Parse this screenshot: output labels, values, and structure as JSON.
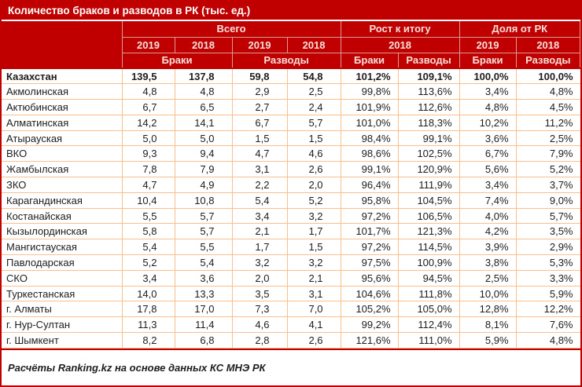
{
  "colors": {
    "header_bg": "#C00000",
    "header_text": "#F5E0DA",
    "title_text": "#FFFFFF",
    "grid_line": "#FABF8F",
    "divider": "#C00000",
    "body_text": "#1D1D1D"
  },
  "chart_data": {
    "type": "table",
    "title": "Количество браков и разводов в РК (тыс. ед.)",
    "column_groups": [
      "Всего",
      "Рост к итогу",
      "Доля от РК"
    ],
    "year_headers": [
      "2019",
      "2018",
      "2019",
      "2018",
      "2018",
      "2019",
      "2018"
    ],
    "measure_headers": [
      "Браки",
      "Разводы",
      "Браки",
      "Разводы",
      "Браки",
      "Разводы"
    ],
    "columns_semantics": [
      "Браки 2019, тыс.",
      "Браки 2018, тыс.",
      "Разводы 2019, тыс.",
      "Разводы 2018, тыс.",
      "Рост к итогу 2018, Браки %",
      "Рост к итогу 2018, Разводы %",
      "Доля от РК 2019, Браки %",
      "Доля от РК 2018, Разводы %"
    ],
    "rows": [
      {
        "region": "Казахстан",
        "bold": true,
        "values": [
          "139,5",
          "137,8",
          "59,8",
          "54,8",
          "101,2%",
          "109,1%",
          "100,0%",
          "100,0%"
        ]
      },
      {
        "region": "Акмолинская",
        "bold": false,
        "values": [
          "4,8",
          "4,8",
          "2,9",
          "2,5",
          "99,8%",
          "113,6%",
          "3,4%",
          "4,8%"
        ]
      },
      {
        "region": "Актюбинская",
        "bold": false,
        "values": [
          "6,7",
          "6,5",
          "2,7",
          "2,4",
          "101,9%",
          "112,6%",
          "4,8%",
          "4,5%"
        ]
      },
      {
        "region": "Алматинская",
        "bold": false,
        "values": [
          "14,2",
          "14,1",
          "6,7",
          "5,7",
          "101,0%",
          "118,3%",
          "10,2%",
          "11,2%"
        ]
      },
      {
        "region": "Атырауская",
        "bold": false,
        "values": [
          "5,0",
          "5,0",
          "1,5",
          "1,5",
          "98,4%",
          "99,1%",
          "3,6%",
          "2,5%"
        ]
      },
      {
        "region": "ВКО",
        "bold": false,
        "values": [
          "9,3",
          "9,4",
          "4,7",
          "4,6",
          "98,6%",
          "102,5%",
          "6,7%",
          "7,9%"
        ]
      },
      {
        "region": "Жамбылская",
        "bold": false,
        "values": [
          "7,8",
          "7,9",
          "3,1",
          "2,6",
          "99,1%",
          "120,9%",
          "5,6%",
          "5,2%"
        ]
      },
      {
        "region": "ЗКО",
        "bold": false,
        "values": [
          "4,7",
          "4,9",
          "2,2",
          "2,0",
          "96,4%",
          "111,9%",
          "3,4%",
          "3,7%"
        ]
      },
      {
        "region": "Карагандинская",
        "bold": false,
        "values": [
          "10,4",
          "10,8",
          "5,4",
          "5,2",
          "95,8%",
          "104,5%",
          "7,4%",
          "9,0%"
        ]
      },
      {
        "region": "Костанайская",
        "bold": false,
        "values": [
          "5,5",
          "5,7",
          "3,4",
          "3,2",
          "97,2%",
          "106,5%",
          "4,0%",
          "5,7%"
        ]
      },
      {
        "region": "Кызылординская",
        "bold": false,
        "values": [
          "5,8",
          "5,7",
          "2,1",
          "1,7",
          "101,7%",
          "121,3%",
          "4,2%",
          "3,5%"
        ]
      },
      {
        "region": "Мангистауская",
        "bold": false,
        "values": [
          "5,4",
          "5,5",
          "1,7",
          "1,5",
          "97,2%",
          "114,5%",
          "3,9%",
          "2,9%"
        ]
      },
      {
        "region": "Павлодарская",
        "bold": false,
        "values": [
          "5,2",
          "5,4",
          "3,2",
          "3,2",
          "97,5%",
          "100,9%",
          "3,8%",
          "5,3%"
        ]
      },
      {
        "region": "СКО",
        "bold": false,
        "values": [
          "3,4",
          "3,6",
          "2,0",
          "2,1",
          "95,6%",
          "94,5%",
          "2,5%",
          "3,3%"
        ]
      },
      {
        "region": "Туркестанская",
        "bold": false,
        "values": [
          "14,0",
          "13,3",
          "3,5",
          "3,1",
          "104,6%",
          "111,8%",
          "10,0%",
          "5,9%"
        ]
      },
      {
        "region": "г. Алматы",
        "bold": false,
        "values": [
          "17,8",
          "17,0",
          "7,3",
          "7,0",
          "105,2%",
          "105,0%",
          "12,8%",
          "12,2%"
        ]
      },
      {
        "region": "г. Нур-Султан",
        "bold": false,
        "values": [
          "11,3",
          "11,4",
          "4,6",
          "4,1",
          "99,2%",
          "112,4%",
          "8,1%",
          "7,6%"
        ]
      },
      {
        "region": "г. Шымкент",
        "bold": false,
        "values": [
          "8,2",
          "6,8",
          "2,8",
          "2,6",
          "121,6%",
          "111,0%",
          "5,9%",
          "4,8%"
        ]
      }
    ],
    "source_note": "Расчёты Ranking.kz на основе данных КС МНЭ РК"
  }
}
